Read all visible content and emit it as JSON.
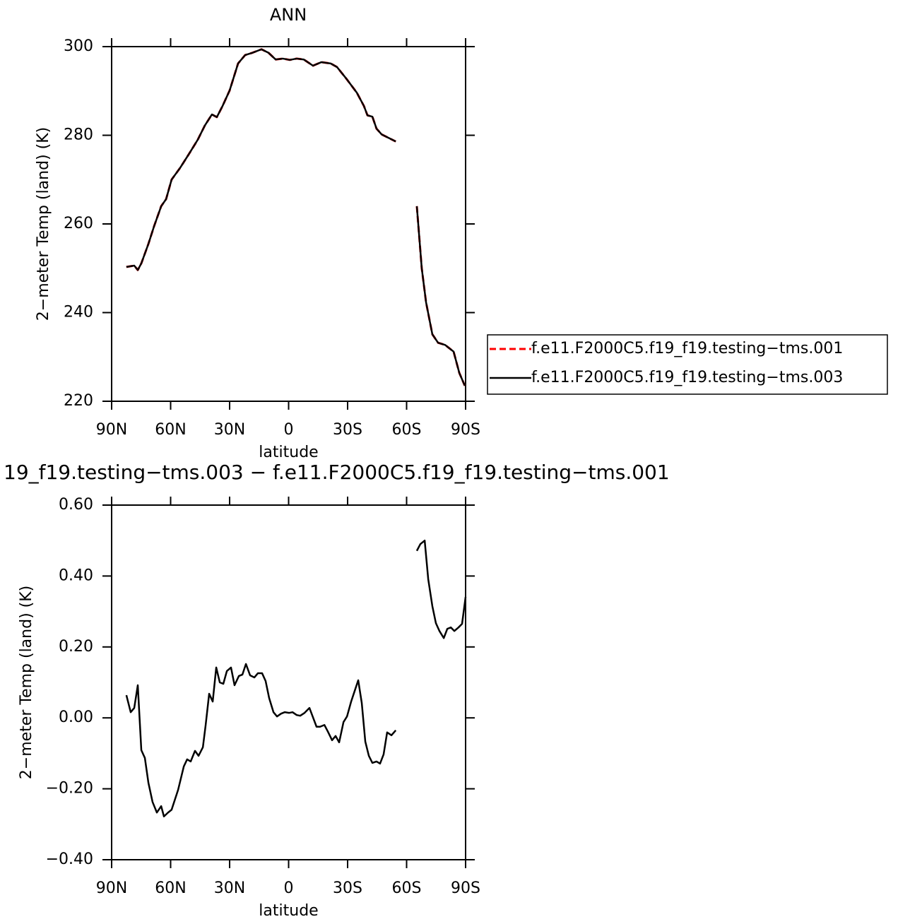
{
  "chart_data": [
    {
      "type": "line",
      "title": "ANN",
      "xlabel": "latitude",
      "ylabel": "2−meter Temp (land) (K)",
      "x": [
        82.5,
        78.5,
        76.7,
        74.9,
        71.3,
        68.4,
        64.8,
        62.3,
        59.5,
        55.1,
        50.5,
        46.2,
        42.6,
        39.0,
        36.5,
        33.6,
        30.0,
        25.7,
        22.1,
        18.5,
        13.8,
        10.2,
        6.6,
        3.0,
        -0.6,
        -4.1,
        -7.7,
        -12.4,
        -16.7,
        -21.4,
        -24.6,
        -29.3,
        -34.7,
        -38.3,
        -40.1,
        -42.6,
        -44.7,
        -47.3,
        -50.9,
        -54.5,
        -60,
        -65.2,
        -67.7,
        -69.9,
        -73.1,
        -76.0,
        -79.6,
        -83.9,
        -86.8,
        -89.6
      ],
      "series": [
        {
          "name": "f.e11.F2000C5.f19_f19.testing−tms.001",
          "color": "#ff0000",
          "line_style": "dashed",
          "values": [
            250.3,
            250.6,
            249.6,
            251.1,
            255.5,
            259.5,
            264.0,
            265.6,
            270.0,
            272.7,
            275.9,
            279.0,
            282.2,
            284.7,
            284.1,
            286.6,
            290.1,
            296.2,
            298.1,
            298.6,
            299.4,
            298.6,
            297.1,
            297.3,
            297.0,
            297.3,
            297.1,
            295.7,
            296.5,
            296.2,
            295.4,
            292.8,
            289.6,
            286.6,
            284.5,
            284.2,
            281.5,
            280.2,
            279.4,
            278.6,
            null,
            264.0,
            250.0,
            242.3,
            235.1,
            233.2,
            232.7,
            231.2,
            226.4,
            223.5
          ]
        },
        {
          "name": "f.e11.F2000C5.f19_f19.testing−tms.003",
          "color": "#000000",
          "line_style": "solid",
          "values": [
            250.3,
            250.6,
            249.6,
            251.1,
            255.5,
            259.5,
            264.0,
            265.6,
            270.0,
            272.7,
            275.9,
            279.0,
            282.2,
            284.7,
            284.1,
            286.6,
            290.1,
            296.2,
            298.1,
            298.6,
            299.4,
            298.6,
            297.1,
            297.3,
            297.0,
            297.3,
            297.1,
            295.7,
            296.5,
            296.2,
            295.4,
            292.8,
            289.6,
            286.6,
            284.5,
            284.2,
            281.5,
            280.2,
            279.4,
            278.6,
            null,
            264.0,
            250.0,
            242.3,
            235.1,
            233.2,
            232.7,
            231.2,
            226.4,
            223.5
          ]
        }
      ],
      "xlim": [
        90,
        -90
      ],
      "xticks": [
        {
          "value": 90,
          "label": "90N"
        },
        {
          "value": 60,
          "label": "60N"
        },
        {
          "value": 30,
          "label": "30N"
        },
        0,
        {
          "value": -30,
          "label": "30S"
        },
        {
          "value": -60,
          "label": "60S"
        },
        {
          "value": -90,
          "label": "90S"
        }
      ],
      "ylim": [
        220,
        300
      ],
      "yticks": [
        220,
        240,
        260,
        280,
        300
      ]
    },
    {
      "type": "line",
      "title": "19_f19.testing−tms.003 − f.e11.F2000C5.f19_f19.testing−tms.001",
      "xlabel": "latitude",
      "ylabel": "2−meter Temp (land) (K)",
      "x": [
        82.5,
        80.3,
        78.5,
        76.7,
        74.9,
        73.1,
        71.3,
        69.2,
        67.0,
        64.8,
        63.4,
        61.3,
        59.5,
        56.2,
        53.3,
        51.6,
        49.8,
        47.6,
        45.8,
        43.6,
        42.2,
        40.4,
        38.6,
        36.8,
        35.0,
        33.2,
        31.4,
        29.3,
        27.5,
        25.3,
        23.5,
        21.7,
        19.6,
        17.4,
        15.6,
        13.5,
        11.7,
        9.9,
        7.7,
        5.9,
        3.8,
        2.0,
        -0.2,
        -2.0,
        -4.1,
        -5.9,
        -8.1,
        -10.6,
        -14.2,
        -16.0,
        -18.2,
        -20.0,
        -22.1,
        -23.9,
        -25.7,
        -27.9,
        -29.7,
        -31.8,
        -33.6,
        -35.4,
        -37.2,
        -39.0,
        -40.8,
        -42.6,
        -44.7,
        -46.5,
        -48.3,
        -50.1,
        -52.3,
        -54.5,
        -60,
        -65.2,
        -67.0,
        -69.2,
        -71.0,
        -73.1,
        -74.9,
        -76.7,
        -78.9,
        -80.7,
        -82.5,
        -84.3,
        -86.4,
        -88.2,
        -90
      ],
      "series": [
        {
          "color": "#000000",
          "line_style": "solid",
          "values": [
            0.064,
            0.016,
            0.028,
            0.092,
            -0.091,
            -0.113,
            -0.183,
            -0.237,
            -0.267,
            -0.249,
            -0.278,
            -0.267,
            -0.259,
            -0.203,
            -0.137,
            -0.117,
            -0.123,
            -0.093,
            -0.107,
            -0.083,
            -0.021,
            0.068,
            0.046,
            0.142,
            0.1,
            0.096,
            0.132,
            0.142,
            0.092,
            0.118,
            0.122,
            0.152,
            0.12,
            0.114,
            0.126,
            0.126,
            0.104,
            0.056,
            0.016,
            0.004,
            0.012,
            0.016,
            0.014,
            0.016,
            0.008,
            0.006,
            0.014,
            0.028,
            -0.025,
            -0.025,
            -0.02,
            -0.039,
            -0.063,
            -0.051,
            -0.069,
            -0.012,
            0.004,
            0.046,
            0.076,
            0.106,
            0.042,
            -0.067,
            -0.107,
            -0.127,
            -0.123,
            -0.129,
            -0.103,
            -0.041,
            -0.049,
            -0.035,
            null,
            0.471,
            0.49,
            0.5,
            0.391,
            0.315,
            0.267,
            0.245,
            0.225,
            0.251,
            0.255,
            0.245,
            0.255,
            0.265,
            0.341
          ]
        }
      ],
      "xlim": [
        90,
        -90
      ],
      "xticks": [
        {
          "value": 90,
          "label": "90N"
        },
        {
          "value": 60,
          "label": "60N"
        },
        {
          "value": 30,
          "label": "30N"
        },
        0,
        {
          "value": -30,
          "label": "30S"
        },
        {
          "value": -60,
          "label": "60S"
        },
        {
          "value": -90,
          "label": "90S"
        }
      ],
      "ylim": [
        -0.4,
        0.6
      ],
      "yticks": [
        {
          "value": -0.4,
          "label": "−0.40"
        },
        {
          "value": -0.2,
          "label": "−0.20"
        },
        {
          "value": 0,
          "label": "0.00"
        },
        {
          "value": 0.2,
          "label": "0.20"
        },
        {
          "value": 0.4,
          "label": "0.40"
        },
        {
          "value": 0.6,
          "label": "0.60"
        }
      ]
    }
  ]
}
